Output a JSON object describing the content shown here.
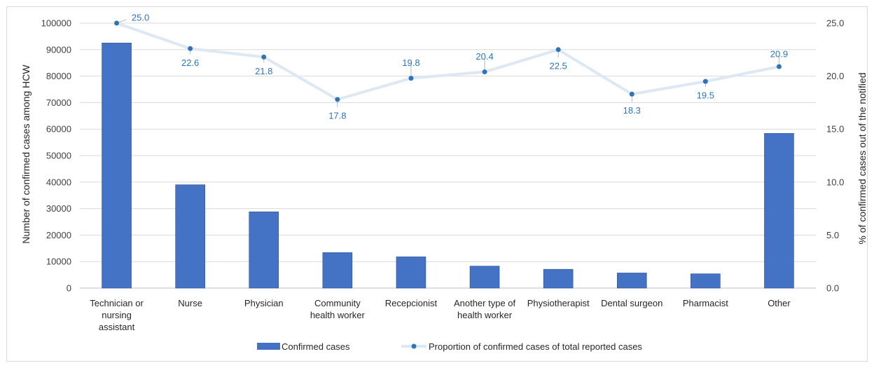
{
  "chart_data": {
    "type": "bar",
    "categories": [
      [
        "Technician or",
        "nursing",
        "assistant"
      ],
      [
        "Nurse"
      ],
      [
        "Physician"
      ],
      [
        "Community",
        "health worker"
      ],
      [
        "Recepcionist"
      ],
      [
        "Another type of",
        "health worker"
      ],
      [
        "Physiotherapist"
      ],
      [
        "Dental surgeon"
      ],
      [
        "Pharmacist"
      ],
      [
        "Other"
      ]
    ],
    "series": [
      {
        "name": "Confirmed cases",
        "type": "bar",
        "axis": "left",
        "color": "#4472c4",
        "values": [
          92500,
          39000,
          28800,
          13400,
          11800,
          8300,
          7100,
          5700,
          5400,
          58400
        ]
      },
      {
        "name": "Proportion of confirmed cases of total reported cases",
        "type": "line",
        "axis": "right",
        "line_color": "#dde8f5",
        "marker_color": "#2e75b6",
        "values": [
          25.0,
          22.6,
          21.8,
          17.8,
          19.8,
          20.4,
          22.5,
          18.3,
          19.5,
          20.9
        ],
        "labels": [
          "25.0",
          "22.6",
          "21.8",
          "17.8",
          "19.8",
          "20.4",
          "22.5",
          "18.3",
          "19.5",
          "20.9"
        ]
      }
    ],
    "ylabel": "Number of confirmed cases among HCW",
    "y2label": "% of confirmed cases out of the notified",
    "ylim": [
      0,
      100000
    ],
    "y2lim": [
      0,
      25
    ],
    "yticks": [
      "0",
      "10000",
      "20000",
      "30000",
      "40000",
      "50000",
      "60000",
      "70000",
      "80000",
      "90000",
      "100000"
    ],
    "y2ticks": [
      "0.0",
      "5.0",
      "10.0",
      "15.0",
      "20.0",
      "25.0"
    ],
    "grid": true,
    "legend": "bottom"
  }
}
